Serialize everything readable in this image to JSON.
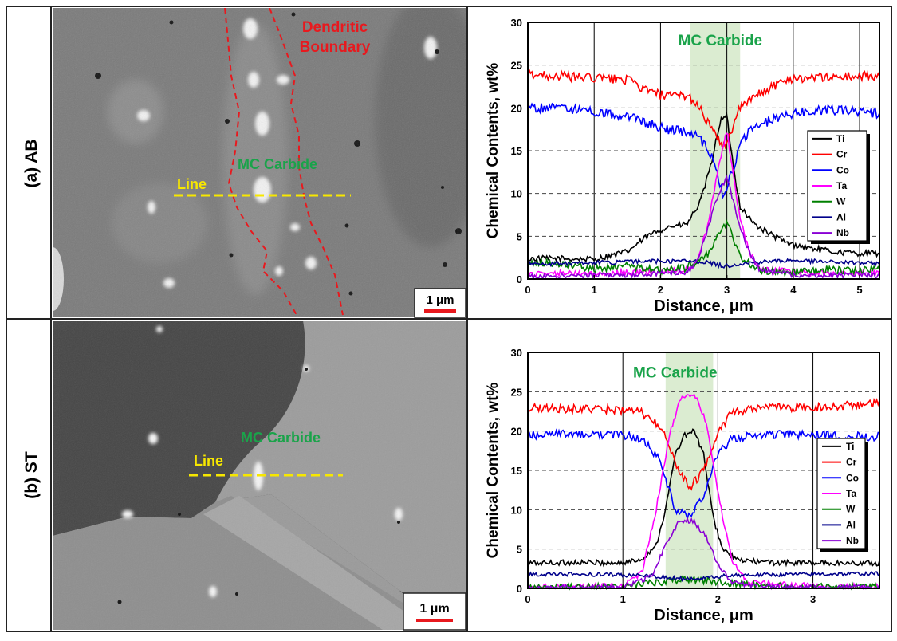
{
  "rows": [
    {
      "label": "(a)   AB",
      "micrograph": {
        "annotations": [
          "Dendritic",
          "Boundary",
          "MC Carbide",
          "Line"
        ],
        "scalebar_label": "1 μm"
      }
    },
    {
      "label": "(b) ST",
      "micrograph": {
        "annotations": [
          "MC Carbide",
          "Line"
        ],
        "scalebar_label": "1 μm"
      }
    }
  ],
  "colors": {
    "Ti": "#000000",
    "Cr": "#ff0000",
    "Co": "#0000ff",
    "Ta": "#ff00ff",
    "W": "#008000",
    "Al": "#00008b",
    "Nb": "#8a00d4",
    "annotation_red": "#e8191e",
    "annotation_green": "#1aa34a",
    "annotation_yellow": "#f7e700",
    "carbide_band": "#dbecd1"
  },
  "chart_data": [
    {
      "type": "line",
      "xlabel": "Distance, μm",
      "ylabel": "Chemical Contents, wt%",
      "xlim": [
        0,
        5.3
      ],
      "ylim": [
        0,
        30
      ],
      "xticks": [
        0,
        1,
        2,
        3,
        4,
        5
      ],
      "yticks": [
        0,
        5,
        10,
        15,
        20,
        25,
        30
      ],
      "grid": "vertical solid at integer x, horizontal dashed at y ticks",
      "legend_position": "right",
      "annotation": {
        "text": "MC Carbide",
        "x": 2.9,
        "y": 27.3
      },
      "highlight_band": [
        2.45,
        3.2
      ],
      "series": [
        {
          "name": "Ti",
          "points": [
            [
              0,
              2.4
            ],
            [
              0.5,
              2.4
            ],
            [
              1.0,
              2.3
            ],
            [
              1.5,
              3.2
            ],
            [
              1.8,
              5.0
            ],
            [
              2.1,
              6.1
            ],
            [
              2.4,
              6.4
            ],
            [
              2.6,
              9
            ],
            [
              2.75,
              13
            ],
            [
              2.9,
              18.5
            ],
            [
              3.0,
              19
            ],
            [
              3.1,
              13
            ],
            [
              3.2,
              8.5
            ],
            [
              3.4,
              6.5
            ],
            [
              3.6,
              5.5
            ],
            [
              3.9,
              4.2
            ],
            [
              4.2,
              3.7
            ],
            [
              4.6,
              3.2
            ],
            [
              5.0,
              3.0
            ],
            [
              5.3,
              3.0
            ]
          ]
        },
        {
          "name": "Cr",
          "points": [
            [
              0,
              24
            ],
            [
              0.5,
              23.7
            ],
            [
              1.0,
              23.5
            ],
            [
              1.5,
              23.3
            ],
            [
              1.8,
              22.0
            ],
            [
              2.1,
              21.3
            ],
            [
              2.4,
              21.5
            ],
            [
              2.6,
              20
            ],
            [
              2.8,
              17
            ],
            [
              2.95,
              15.5
            ],
            [
              3.05,
              17
            ],
            [
              3.2,
              20
            ],
            [
              3.4,
              21.2
            ],
            [
              3.7,
              22.6
            ],
            [
              4.0,
              23.5
            ],
            [
              4.5,
              23.6
            ],
            [
              5.0,
              23.7
            ],
            [
              5.3,
              23.8
            ]
          ]
        },
        {
          "name": "Co",
          "points": [
            [
              0,
              20
            ],
            [
              0.5,
              20
            ],
            [
              1.0,
              19.5
            ],
            [
              1.5,
              19
            ],
            [
              1.8,
              18.2
            ],
            [
              2.1,
              17.5
            ],
            [
              2.4,
              17.2
            ],
            [
              2.6,
              16.4
            ],
            [
              2.8,
              14
            ],
            [
              2.95,
              9.5
            ],
            [
              3.1,
              13
            ],
            [
              3.2,
              16
            ],
            [
              3.4,
              17.6
            ],
            [
              3.7,
              18.7
            ],
            [
              4.0,
              19.3
            ],
            [
              4.5,
              19.8
            ],
            [
              5.0,
              19.6
            ],
            [
              5.3,
              19.3
            ]
          ]
        },
        {
          "name": "Ta",
          "points": [
            [
              0,
              0.5
            ],
            [
              0.5,
              0.7
            ],
            [
              1.0,
              0.6
            ],
            [
              1.5,
              0.8
            ],
            [
              2.0,
              0.9
            ],
            [
              2.4,
              1.0
            ],
            [
              2.55,
              2.0
            ],
            [
              2.7,
              6
            ],
            [
              2.85,
              12
            ],
            [
              3.0,
              17.5
            ],
            [
              3.1,
              12
            ],
            [
              3.2,
              7
            ],
            [
              3.35,
              3
            ],
            [
              3.5,
              1.2
            ],
            [
              4.0,
              0.8
            ],
            [
              4.5,
              0.6
            ],
            [
              5.0,
              0.7
            ],
            [
              5.3,
              0.6
            ]
          ]
        },
        {
          "name": "W",
          "points": [
            [
              0,
              2.0
            ],
            [
              0.5,
              1.8
            ],
            [
              1.0,
              1.2
            ],
            [
              1.5,
              1.5
            ],
            [
              2.0,
              1.0
            ],
            [
              2.4,
              1.3
            ],
            [
              2.7,
              2.8
            ],
            [
              2.85,
              4.8
            ],
            [
              3.0,
              6.8
            ],
            [
              3.1,
              4.6
            ],
            [
              3.25,
              2.2
            ],
            [
              3.5,
              1.0
            ],
            [
              4.0,
              0.8
            ],
            [
              4.5,
              1.1
            ],
            [
              5.0,
              1.0
            ],
            [
              5.3,
              1.3
            ]
          ]
        },
        {
          "name": "Al",
          "points": [
            [
              0,
              1.8
            ],
            [
              0.5,
              1.8
            ],
            [
              1.0,
              1.9
            ],
            [
              1.5,
              2.0
            ],
            [
              2.0,
              2.1
            ],
            [
              2.4,
              2.1
            ],
            [
              2.7,
              2.0
            ],
            [
              2.95,
              1.5
            ],
            [
              3.2,
              1.8
            ],
            [
              3.5,
              2.0
            ],
            [
              4.0,
              2.2
            ],
            [
              4.5,
              2.0
            ],
            [
              5.0,
              1.9
            ],
            [
              5.3,
              1.8
            ]
          ]
        },
        {
          "name": "Nb",
          "points": [
            [
              0,
              0.3
            ],
            [
              0.5,
              0.4
            ],
            [
              1.0,
              0.4
            ],
            [
              1.5,
              0.5
            ],
            [
              2.0,
              0.6
            ],
            [
              2.4,
              0.8
            ],
            [
              2.55,
              2.0
            ],
            [
              2.7,
              5.5
            ],
            [
              2.85,
              9.5
            ],
            [
              3.0,
              12
            ],
            [
              3.1,
              9
            ],
            [
              3.2,
              6
            ],
            [
              3.35,
              3
            ],
            [
              3.5,
              1.0
            ],
            [
              4.0,
              0.5
            ],
            [
              4.5,
              0.4
            ],
            [
              5.0,
              0.5
            ],
            [
              5.3,
              0.4
            ]
          ]
        }
      ]
    },
    {
      "type": "line",
      "xlabel": "Distance, μm",
      "ylabel": "Chemical Contents, wt%",
      "xlim": [
        0,
        3.7
      ],
      "ylim": [
        0,
        30
      ],
      "xticks": [
        0,
        1,
        2,
        3
      ],
      "yticks": [
        0,
        5,
        10,
        15,
        20,
        25,
        30
      ],
      "grid": "vertical solid at integer x, horizontal dashed at y ticks",
      "legend_position": "right",
      "annotation": {
        "text": "MC Carbide",
        "x": 1.55,
        "y": 26.8
      },
      "highlight_band": [
        1.45,
        1.95
      ],
      "series": [
        {
          "name": "Ti",
          "points": [
            [
              0,
              3.2
            ],
            [
              0.5,
              3.3
            ],
            [
              1.0,
              3.2
            ],
            [
              1.2,
              3.7
            ],
            [
              1.35,
              5.5
            ],
            [
              1.45,
              10
            ],
            [
              1.55,
              17
            ],
            [
              1.65,
              19.5
            ],
            [
              1.75,
              20
            ],
            [
              1.85,
              17
            ],
            [
              1.95,
              9
            ],
            [
              2.05,
              5
            ],
            [
              2.2,
              3.6
            ],
            [
              2.5,
              3.3
            ],
            [
              3.0,
              3.2
            ],
            [
              3.7,
              3.2
            ]
          ]
        },
        {
          "name": "Cr",
          "points": [
            [
              0,
              23
            ],
            [
              0.5,
              22.8
            ],
            [
              1.0,
              22.7
            ],
            [
              1.2,
              22.3
            ],
            [
              1.4,
              20.5
            ],
            [
              1.55,
              16
            ],
            [
              1.7,
              12.8
            ],
            [
              1.85,
              15
            ],
            [
              2.0,
              20
            ],
            [
              2.15,
              22.3
            ],
            [
              2.5,
              23
            ],
            [
              3.0,
              23
            ],
            [
              3.7,
              23.5
            ]
          ]
        },
        {
          "name": "Co",
          "points": [
            [
              0,
              19.5
            ],
            [
              0.5,
              19.6
            ],
            [
              1.0,
              19.5
            ],
            [
              1.2,
              19
            ],
            [
              1.4,
              16
            ],
            [
              1.55,
              10
            ],
            [
              1.7,
              9
            ],
            [
              1.85,
              12
            ],
            [
              2.0,
              17
            ],
            [
              2.15,
              19
            ],
            [
              2.5,
              19.6
            ],
            [
              3.0,
              19.5
            ],
            [
              3.7,
              19.3
            ]
          ]
        },
        {
          "name": "Ta",
          "points": [
            [
              0,
              0.2
            ],
            [
              1.0,
              0.3
            ],
            [
              1.2,
              2.0
            ],
            [
              1.35,
              10
            ],
            [
              1.5,
              20
            ],
            [
              1.62,
              24.5
            ],
            [
              1.75,
              24.8
            ],
            [
              1.88,
              21
            ],
            [
              2.0,
              12
            ],
            [
              2.15,
              3.5
            ],
            [
              2.3,
              0.8
            ],
            [
              3.0,
              0.3
            ],
            [
              3.7,
              0.2
            ]
          ]
        },
        {
          "name": "W",
          "points": [
            [
              0,
              0.1
            ],
            [
              1.0,
              0.2
            ],
            [
              1.4,
              0.8
            ],
            [
              1.7,
              1.2
            ],
            [
              2.0,
              0.8
            ],
            [
              2.5,
              0.3
            ],
            [
              3.7,
              0.2
            ]
          ]
        },
        {
          "name": "Al",
          "points": [
            [
              0,
              1.8
            ],
            [
              0.5,
              1.8
            ],
            [
              1.0,
              1.7
            ],
            [
              1.3,
              1.6
            ],
            [
              1.55,
              1.3
            ],
            [
              1.7,
              1.2
            ],
            [
              1.9,
              1.4
            ],
            [
              2.2,
              1.7
            ],
            [
              3.0,
              1.8
            ],
            [
              3.7,
              1.9
            ]
          ]
        },
        {
          "name": "Nb",
          "points": [
            [
              0,
              0.1
            ],
            [
              1.0,
              0.2
            ],
            [
              1.3,
              1.5
            ],
            [
              1.45,
              5.5
            ],
            [
              1.6,
              8.7
            ],
            [
              1.75,
              8.5
            ],
            [
              1.88,
              6.5
            ],
            [
              2.0,
              3
            ],
            [
              2.15,
              0.8
            ],
            [
              2.4,
              0.2
            ],
            [
              3.7,
              0.1
            ]
          ]
        }
      ]
    }
  ]
}
